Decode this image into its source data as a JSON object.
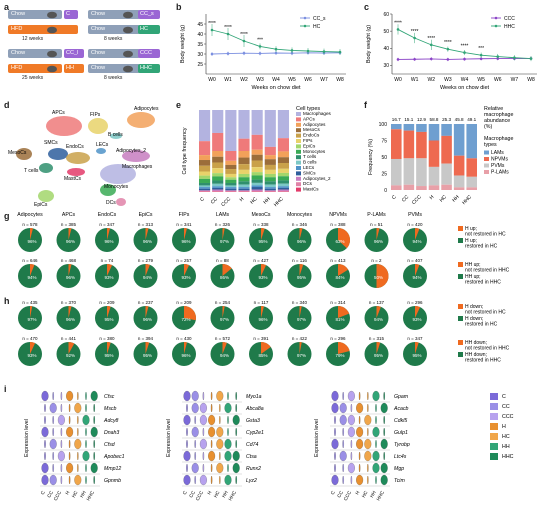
{
  "panels": {
    "a": "a",
    "b": "b",
    "c": "c",
    "d": "d",
    "e": "e",
    "f": "f",
    "g": "g",
    "h": "h",
    "i": "i"
  },
  "panel_a": {
    "rows": [
      {
        "left1": "Chow",
        "left1_tag": "C",
        "left2": "Chow",
        "left2_tag": "CC_s"
      },
      {
        "left1": "HFD",
        "left1_tag": "",
        "left2": "Chow",
        "left2_tag": "HC"
      },
      {
        "left1": "Chow",
        "left1_tag": "CC_l",
        "left2": "Chow",
        "left2_tag": "CCC"
      },
      {
        "left1": "HFD",
        "left1_tag": "HH",
        "left2": "Chow",
        "left2_tag": "HHC"
      }
    ],
    "weeks_12": "12 weeks",
    "weeks_8a": "8 weeks",
    "weeks_25": "25 weeks",
    "weeks_8b": "8 weeks"
  },
  "chart_data": [
    {
      "type": "line",
      "panel": "b",
      "xlabel": "Weeks on chow diet",
      "ylabel": "Body weight (g)",
      "x": [
        "W0",
        "W1",
        "W2",
        "W3",
        "W4",
        "W5",
        "W6",
        "W7",
        "W8"
      ],
      "ylim": [
        20,
        50
      ],
      "yticks": [
        25,
        30,
        35,
        40,
        45
      ],
      "series": [
        {
          "name": "CC_s",
          "color": "#7b8fe0",
          "values": [
            30.0,
            30.2,
            30.4,
            30.3,
            30.5,
            30.4,
            30.6,
            30.5,
            30.6
          ]
        },
        {
          "name": "HC",
          "color": "#31a577",
          "values": [
            42.0,
            40.0,
            36.5,
            33.8,
            32.4,
            31.8,
            31.5,
            31.2,
            31.0
          ]
        }
      ],
      "stars": [
        "****",
        "****",
        "****",
        "***",
        "",
        "",
        "",
        "",
        ""
      ]
    },
    {
      "type": "line",
      "panel": "c",
      "xlabel": "Weeks on chow diet",
      "ylabel": "Body weight (g)",
      "x": [
        "W0",
        "W1",
        "W2",
        "W3",
        "W4",
        "W5",
        "W6",
        "W7",
        "W8"
      ],
      "ylim": [
        25,
        60
      ],
      "yticks": [
        30,
        40,
        50,
        60
      ],
      "series": [
        {
          "name": "CCC",
          "color": "#8b44c7",
          "values": [
            33.5,
            33.6,
            33.8,
            33.5,
            33.7,
            33.9,
            34.0,
            34.0,
            34.1
          ]
        },
        {
          "name": "HHC",
          "color": "#31a577",
          "values": [
            51.0,
            46.0,
            42.0,
            39.5,
            37.5,
            36.0,
            35.2,
            34.5,
            34.0
          ]
        }
      ],
      "stars": [
        "****",
        "****",
        "****",
        "****",
        "****",
        "***",
        "",
        "",
        ""
      ]
    },
    {
      "type": "bar",
      "panel": "e",
      "stacked": true,
      "ylabel": "Cell type frequency",
      "categories": [
        "C",
        "CC",
        "CCC",
        "H",
        "HC",
        "HH",
        "HHC"
      ],
      "legend_title": "Cell types",
      "series": [
        {
          "name": "Macrophages",
          "color": "#b3b3e0",
          "values": [
            0.38,
            0.28,
            0.5,
            0.35,
            0.3,
            0.45,
            0.34
          ]
        },
        {
          "name": "APCs",
          "color": "#ef7a7a",
          "values": [
            0.17,
            0.22,
            0.12,
            0.15,
            0.18,
            0.1,
            0.16
          ]
        },
        {
          "name": "Adipocytes",
          "color": "#f2a15a",
          "values": [
            0.06,
            0.07,
            0.05,
            0.08,
            0.06,
            0.05,
            0.07
          ]
        },
        {
          "name": "MesoCs",
          "color": "#9b6d3a",
          "values": [
            0.07,
            0.07,
            0.05,
            0.08,
            0.07,
            0.07,
            0.07
          ]
        },
        {
          "name": "EndoCs",
          "color": "#c9a14a",
          "values": [
            0.07,
            0.07,
            0.06,
            0.07,
            0.08,
            0.06,
            0.07
          ]
        },
        {
          "name": "FIPs",
          "color": "#e8d26a",
          "values": [
            0.05,
            0.06,
            0.04,
            0.05,
            0.06,
            0.05,
            0.05
          ]
        },
        {
          "name": "EpiCs",
          "color": "#a2d66b",
          "values": [
            0.04,
            0.04,
            0.03,
            0.04,
            0.04,
            0.04,
            0.04
          ]
        },
        {
          "name": "Monocytes",
          "color": "#3aaa55",
          "values": [
            0.05,
            0.05,
            0.04,
            0.05,
            0.05,
            0.05,
            0.05
          ]
        },
        {
          "name": "T cells",
          "color": "#2f8f6d",
          "values": [
            0.03,
            0.04,
            0.03,
            0.04,
            0.04,
            0.04,
            0.04
          ]
        },
        {
          "name": "B cells",
          "color": "#7cc8c6",
          "values": [
            0.02,
            0.03,
            0.02,
            0.03,
            0.03,
            0.03,
            0.03
          ]
        },
        {
          "name": "LECs",
          "color": "#4f93c8",
          "values": [
            0.02,
            0.02,
            0.02,
            0.02,
            0.02,
            0.02,
            0.02
          ]
        },
        {
          "name": "SMCs",
          "color": "#2e5e9c",
          "values": [
            0.02,
            0.02,
            0.02,
            0.02,
            0.03,
            0.02,
            0.02
          ]
        },
        {
          "name": "Adipocytes_2",
          "color": "#c77dc0",
          "values": [
            0.01,
            0.02,
            0.01,
            0.01,
            0.02,
            0.01,
            0.02
          ]
        },
        {
          "name": "DCs",
          "color": "#e083a8",
          "values": [
            0.005,
            0.005,
            0.005,
            0.005,
            0.005,
            0.005,
            0.005
          ]
        },
        {
          "name": "MastCs",
          "color": "#e33b6a",
          "values": [
            0.005,
            0.005,
            0.005,
            0.005,
            0.005,
            0.005,
            0.005
          ]
        }
      ]
    },
    {
      "type": "bar",
      "panel": "f",
      "stacked": true,
      "ylabel": "Frequency (%)",
      "ylim": [
        0,
        100
      ],
      "yticks": [
        0,
        25,
        50,
        75,
        100
      ],
      "categories": [
        "C",
        "CC",
        "CCC",
        "H",
        "HC",
        "HH",
        "HHC"
      ],
      "top_values": [
        "16.7",
        "15.1",
        "12.9",
        "58.8",
        "25.3",
        "45.8",
        "49.1"
      ],
      "top_title": "Relative macrophage abundance (%)",
      "legend_title": "Macrophage types",
      "series": [
        {
          "name": "LAMs",
          "color": "#6f9fd0",
          "values": [
            8,
            10,
            12,
            25,
            18,
            48,
            52
          ]
        },
        {
          "name": "NPVMs",
          "color": "#ee6a50",
          "values": [
            45,
            42,
            40,
            40,
            42,
            30,
            28
          ]
        },
        {
          "name": "PVMs",
          "color": "#c8c8c8",
          "values": [
            40,
            40,
            42,
            28,
            32,
            18,
            16
          ]
        },
        {
          "name": "P-LAMs",
          "color": "#e8a0a8",
          "values": [
            7,
            8,
            6,
            7,
            8,
            4,
            4
          ]
        }
      ]
    },
    {
      "type": "pie",
      "panel": "g",
      "cell_types": [
        "Adipocytes",
        "APCs",
        "EndoCs",
        "EpiCs",
        "FIPs",
        "LAMs",
        "MesoCs",
        "Monocytes",
        "NPVMs",
        "P-LAMs",
        "PVMs"
      ],
      "row1_n": [
        "n = 578",
        "n = 385",
        "n = 347",
        "n = 313",
        "n = 341",
        "n = 326",
        "n = 338",
        "n = 346",
        "n = 388",
        "n = 51",
        "n = 420"
      ],
      "row1_pct_orange": [
        4,
        4,
        4,
        4,
        4,
        3,
        5,
        4,
        37,
        4,
        6
      ],
      "row2_n": [
        "n = 646",
        "n = 468",
        "n = 74",
        "n = 279",
        "n = 257",
        "n = 88",
        "n = 427",
        "n = 116",
        "n = 413",
        "n = 2",
        "n = 407"
      ],
      "row2_pct_orange": [
        6,
        4,
        7,
        6,
        7,
        14,
        7,
        5,
        16,
        50,
        6
      ],
      "legend": [
        {
          "label": "H up; not restored in HC",
          "color": "#ef6a20"
        },
        {
          "label": "H up; restored in HC",
          "color": "#1f7a4a"
        },
        {
          "label": "HH up; not restored in HHC",
          "color": "#ef6a20"
        },
        {
          "label": "HH up; restored in HHC",
          "color": "#1f7a4a"
        }
      ]
    },
    {
      "type": "pie",
      "panel": "h",
      "row1_n": [
        "n = 435",
        "n = 370",
        "n = 209",
        "n = 237",
        "n = 209",
        "n = 254",
        "n = 117",
        "n = 340",
        "n = 314",
        "n = 137",
        "n = 296"
      ],
      "row1_pct_orange": [
        3,
        4,
        5,
        4,
        28,
        3,
        4,
        3,
        19,
        6,
        7
      ],
      "row2_n": [
        "n = 470",
        "n = 441",
        "n = 380",
        "n = 394",
        "n = 430",
        "n = 572",
        "n = 391",
        "n = 422",
        "n = 296",
        "n = 315",
        "n = 347"
      ],
      "row2_pct_orange": [
        7,
        8,
        5,
        5,
        4,
        6,
        15,
        3,
        21,
        5,
        5
      ],
      "legend": [
        {
          "label": "H down; not restored in HC",
          "color": "#ef6a20"
        },
        {
          "label": "H down; restored in HC",
          "color": "#1f7a4a"
        },
        {
          "label": "HH down; not restored in HHC",
          "color": "#ef6a20"
        },
        {
          "label": "HH down; restored in HHC",
          "color": "#1f7a4a"
        }
      ]
    }
  ],
  "panel_d": {
    "labels": [
      "APCs",
      "FIPs",
      "Adipocytes",
      "B cells",
      "LECs",
      "MesoCs",
      "SMCs",
      "EndoCs",
      "Adipocytes_2",
      "T cells",
      "MastCs",
      "Macrophages",
      "EpiCs",
      "Monocytes",
      "DCs"
    ]
  },
  "panel_i": {
    "ylabel": "Expression level",
    "groups": [
      "C",
      "CC",
      "CCC",
      "H",
      "HC",
      "HH",
      "HHC"
    ],
    "group_colors": [
      "#7b6ad8",
      "#9a8fe6",
      "#b7a2ee",
      "#e8902f",
      "#f0a64a",
      "#31a577",
      "#1f8a5a"
    ],
    "block1_genes": [
      "Cfsc",
      "Mscb",
      "Adcy8",
      "Dnah3",
      "Cfsd",
      "Apobec1",
      "Mmp12",
      "Gpnmb"
    ],
    "block2_genes": [
      "Myo1a",
      "Abca8a",
      "Gsta3",
      "Cyp2e1",
      "Cd74",
      "Ctsa",
      "Runx2",
      "Lyz2"
    ],
    "block3_genes": [
      "Gpam",
      "Acacb",
      "Cdkl5",
      "Gulp1",
      "Tyrobp",
      "Ltc4s",
      "Mgp",
      "Tcim"
    ],
    "legend": [
      "C",
      "CC",
      "CCC",
      "H",
      "HC",
      "HH",
      "HHC"
    ]
  },
  "labels": {
    "relative_title": "Relative macrophage abundance (%)",
    "mac_types": "Macrophage types",
    "cell_types": "Cell types"
  }
}
